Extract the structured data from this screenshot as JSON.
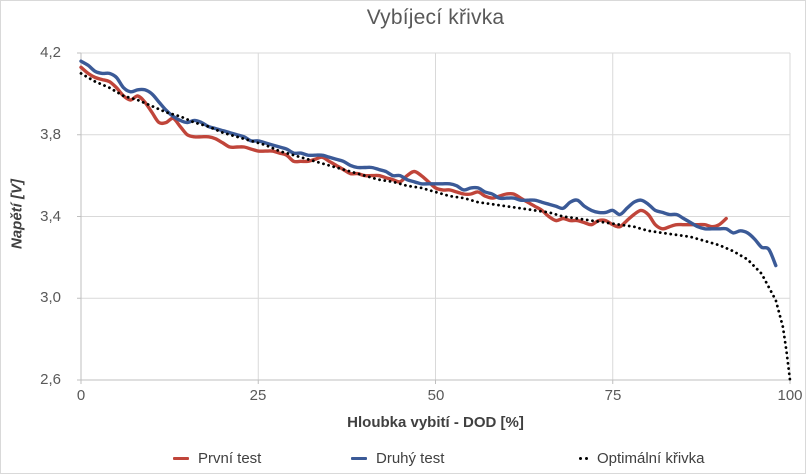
{
  "chart_data": {
    "type": "line",
    "title": "Vybíjecí křivka",
    "xlabel": "Hloubka vybití - DOD [%]",
    "ylabel": "Napětí [V]",
    "xlim": [
      0,
      100
    ],
    "ylim": [
      2.6,
      4.2
    ],
    "grid": true,
    "legend_position": "bottom",
    "x_ticks": [
      0,
      25,
      50,
      75,
      100
    ],
    "x_tick_labels": [
      "0",
      "25",
      "50",
      "75",
      "100"
    ],
    "y_ticks": [
      4.2,
      3.8,
      3.4,
      3.0,
      2.6
    ],
    "y_tick_labels": [
      "4,2",
      "3,8",
      "3,4",
      "3,0",
      "2,6"
    ],
    "colors": {
      "grid": "#d9d9d9",
      "axis": "#bfbfbf",
      "title_text": "#595959",
      "tick_text": "#595959",
      "axis_label_text": "#404040",
      "first_test": "#c0453a",
      "second_test": "#3b5a97",
      "optimal": "#000000"
    },
    "series": [
      {
        "name": "První test",
        "color": "#c0453a",
        "style": "solid",
        "smooth": true,
        "x": [
          0,
          1,
          2,
          3,
          4,
          5,
          6,
          7,
          8,
          9,
          10,
          11,
          12,
          13,
          14,
          15,
          16,
          17,
          18,
          19,
          20,
          21,
          22,
          23,
          24,
          25,
          26,
          27,
          28,
          29,
          30,
          31,
          32,
          33,
          34,
          35,
          36,
          37,
          38,
          39,
          40,
          41,
          42,
          43,
          44,
          45,
          46,
          47,
          48,
          49,
          50,
          51,
          52,
          53,
          54,
          55,
          56,
          57,
          58,
          59,
          60,
          61,
          62,
          63,
          64,
          65,
          66,
          67,
          68,
          69,
          70,
          71,
          72,
          73,
          74,
          75,
          76,
          77,
          78,
          79,
          80,
          81,
          82,
          83,
          84,
          85,
          86,
          87,
          88,
          89,
          90,
          91
        ],
        "y": [
          4.13,
          4.1,
          4.08,
          4.07,
          4.06,
          4.03,
          3.99,
          3.97,
          3.99,
          3.96,
          3.91,
          3.86,
          3.86,
          3.88,
          3.84,
          3.8,
          3.79,
          3.79,
          3.79,
          3.78,
          3.76,
          3.74,
          3.74,
          3.74,
          3.73,
          3.72,
          3.72,
          3.72,
          3.71,
          3.7,
          3.67,
          3.67,
          3.67,
          3.68,
          3.69,
          3.67,
          3.65,
          3.63,
          3.61,
          3.61,
          3.6,
          3.6,
          3.6,
          3.59,
          3.58,
          3.57,
          3.6,
          3.62,
          3.6,
          3.57,
          3.54,
          3.53,
          3.53,
          3.52,
          3.51,
          3.51,
          3.52,
          3.5,
          3.49,
          3.5,
          3.51,
          3.51,
          3.49,
          3.47,
          3.45,
          3.43,
          3.4,
          3.38,
          3.39,
          3.38,
          3.38,
          3.37,
          3.36,
          3.38,
          3.38,
          3.36,
          3.35,
          3.38,
          3.41,
          3.43,
          3.41,
          3.36,
          3.34,
          3.35,
          3.36,
          3.36,
          3.36,
          3.36,
          3.36,
          3.35,
          3.36,
          3.39
        ]
      },
      {
        "name": "Druhý test",
        "color": "#3b5a97",
        "style": "solid",
        "smooth": true,
        "x": [
          0,
          1,
          2,
          3,
          4,
          5,
          6,
          7,
          8,
          9,
          10,
          11,
          12,
          13,
          14,
          15,
          16,
          17,
          18,
          19,
          20,
          21,
          22,
          23,
          24,
          25,
          26,
          27,
          28,
          29,
          30,
          31,
          32,
          33,
          34,
          35,
          36,
          37,
          38,
          39,
          40,
          41,
          42,
          43,
          44,
          45,
          46,
          47,
          48,
          49,
          50,
          51,
          52,
          53,
          54,
          55,
          56,
          57,
          58,
          59,
          60,
          61,
          62,
          63,
          64,
          65,
          66,
          67,
          68,
          69,
          70,
          71,
          72,
          73,
          74,
          75,
          76,
          77,
          78,
          79,
          80,
          81,
          82,
          83,
          84,
          85,
          86,
          87,
          88,
          89,
          90,
          91,
          92,
          93,
          94,
          95,
          96,
          97,
          98
        ],
        "y": [
          4.16,
          4.14,
          4.11,
          4.1,
          4.1,
          4.08,
          4.03,
          4.01,
          4.02,
          4.02,
          4.0,
          3.96,
          3.92,
          3.89,
          3.87,
          3.86,
          3.87,
          3.86,
          3.84,
          3.83,
          3.82,
          3.81,
          3.8,
          3.79,
          3.77,
          3.77,
          3.76,
          3.75,
          3.74,
          3.73,
          3.71,
          3.71,
          3.7,
          3.7,
          3.7,
          3.69,
          3.68,
          3.67,
          3.65,
          3.64,
          3.64,
          3.64,
          3.63,
          3.62,
          3.6,
          3.6,
          3.58,
          3.57,
          3.56,
          3.56,
          3.56,
          3.56,
          3.56,
          3.55,
          3.53,
          3.54,
          3.54,
          3.52,
          3.51,
          3.49,
          3.49,
          3.49,
          3.48,
          3.48,
          3.48,
          3.47,
          3.46,
          3.45,
          3.44,
          3.47,
          3.48,
          3.45,
          3.43,
          3.42,
          3.42,
          3.43,
          3.41,
          3.44,
          3.47,
          3.48,
          3.46,
          3.43,
          3.42,
          3.41,
          3.41,
          3.39,
          3.37,
          3.35,
          3.34,
          3.34,
          3.34,
          3.34,
          3.32,
          3.33,
          3.32,
          3.29,
          3.25,
          3.24,
          3.16
        ]
      },
      {
        "name": "Optimální křivka",
        "color": "#000000",
        "style": "dotted",
        "smooth": false,
        "x": [
          0,
          2,
          4,
          6,
          8,
          10,
          12,
          14,
          16,
          18,
          20,
          22,
          24,
          26,
          28,
          30,
          32,
          34,
          36,
          38,
          40,
          42,
          44,
          46,
          48,
          50,
          52,
          54,
          56,
          58,
          60,
          62,
          64,
          66,
          68,
          70,
          72,
          74,
          76,
          78,
          80,
          82,
          84,
          86,
          88,
          90,
          92,
          94,
          96,
          98,
          99,
          99.5,
          100
        ],
        "y": [
          4.1,
          4.06,
          4.03,
          3.99,
          3.97,
          3.94,
          3.91,
          3.89,
          3.86,
          3.84,
          3.81,
          3.79,
          3.77,
          3.75,
          3.72,
          3.7,
          3.68,
          3.66,
          3.64,
          3.62,
          3.6,
          3.58,
          3.57,
          3.55,
          3.54,
          3.52,
          3.5,
          3.49,
          3.47,
          3.46,
          3.45,
          3.44,
          3.43,
          3.42,
          3.4,
          3.39,
          3.38,
          3.37,
          3.36,
          3.35,
          3.33,
          3.32,
          3.31,
          3.3,
          3.28,
          3.26,
          3.23,
          3.19,
          3.12,
          2.99,
          2.86,
          2.74,
          2.6
        ]
      }
    ]
  }
}
